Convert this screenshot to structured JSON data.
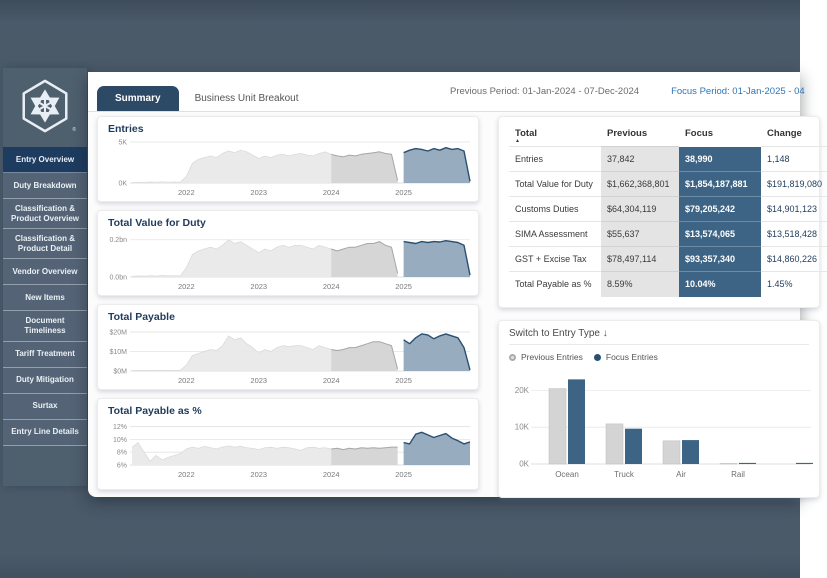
{
  "colors": {
    "background": "#4A5A69",
    "sidebar_panel": "#4E5F6E",
    "sidebar_item": "#546476",
    "sidebar_active": "#1E3C5F",
    "tab_navy": "#2C4A66",
    "steel_blue": "#3D6485",
    "steel_fill": "#91A8BC",
    "navy_stroke": "#2A5071",
    "prev_fill": "#D4D4D4",
    "prev_stroke": "#A6A6A6",
    "base_fill": "#E9E9E9",
    "focus_text_blue": "#2E75B6",
    "navy_text": "#1F3B5C",
    "prev_cell_bg": "#E4E4E4"
  },
  "tabs": [
    "Summary",
    "Business Unit Breakout"
  ],
  "header": {
    "previous_period": "Previous Period: 01-Jan-2024 - 07-Dec-2024",
    "focus_period": "Focus Period: 01-Jan-2025 - 04"
  },
  "sidebar": {
    "items": [
      {
        "label": "Entry Overview",
        "active": true
      },
      {
        "label": "Duty Breakdown"
      },
      {
        "label": "Classification & Product Overview"
      },
      {
        "label": "Classification & Product Detail"
      },
      {
        "label": "Vendor Overview"
      },
      {
        "label": "New Items"
      },
      {
        "label": "Document Timeliness"
      },
      {
        "label": "Tariff Treatment"
      },
      {
        "label": "Duty Mitigation"
      },
      {
        "label": "Surtax"
      },
      {
        "label": "Entry Line Details"
      }
    ]
  },
  "table": {
    "headers": [
      "Total",
      "Previous",
      "Focus",
      "Change"
    ],
    "sort_icon": "▲",
    "rows": [
      {
        "label": "Entries",
        "previous": "37,842",
        "focus": "38,990",
        "change": "1,148"
      },
      {
        "label": "Total Value for Duty",
        "previous": "$1,662,368,801",
        "focus": "$1,854,187,881",
        "change": "$191,819,080"
      },
      {
        "label": "Customs Duties",
        "previous": "$64,304,119",
        "focus": "$79,205,242",
        "change": "$14,901,123"
      },
      {
        "label": "SIMA Assessment",
        "previous": "$55,637",
        "focus": "$13,574,065",
        "change": "$13,518,428"
      },
      {
        "label": "GST + Excise Tax",
        "previous": "$78,497,114",
        "focus": "$93,357,340",
        "change": "$14,860,226"
      },
      {
        "label": "Total Payable as %",
        "previous": "8.59%",
        "focus": "10.04%",
        "change": "1.45%"
      }
    ]
  },
  "chart_data": [
    {
      "type": "area",
      "title": "Entries",
      "ymin": 0,
      "ymax": 5,
      "yticks": [
        {
          "v": 0,
          "label": "0K"
        },
        {
          "v": 5,
          "label": "5K"
        }
      ],
      "xticks": [
        "2022",
        "2023",
        "2024",
        "2025"
      ],
      "prev_start": 33,
      "focus_start": 45,
      "values": [
        0.05,
        0.1,
        0.08,
        0.12,
        0.1,
        0.15,
        0.1,
        0.12,
        0.1,
        0.8,
        2.4,
        2.9,
        3.1,
        3.3,
        3.1,
        3.6,
        3.9,
        3.7,
        4.0,
        3.8,
        3.4,
        3.0,
        3.3,
        3.1,
        3.4,
        3.5,
        3.3,
        3.5,
        3.6,
        3.4,
        3.3,
        3.6,
        3.8,
        3.5,
        3.3,
        3.2,
        3.4,
        3.3,
        3.5,
        3.6,
        3.7,
        3.8,
        3.6,
        3.5,
        0.3,
        3.7,
        4.0,
        4.2,
        4.1,
        3.9,
        4.2,
        4.0,
        4.3,
        4.1,
        4.2,
        3.9,
        0.2
      ]
    },
    {
      "type": "area",
      "title": "Total Value for Duty",
      "ymin": 0,
      "ymax": 0.22,
      "yticks": [
        {
          "v": 0,
          "label": "0.0bn"
        },
        {
          "v": 0.2,
          "label": "0.2bn"
        }
      ],
      "xticks": [
        "2022",
        "2023",
        "2024",
        "2025"
      ],
      "prev_start": 33,
      "focus_start": 45,
      "values": [
        0.004,
        0.006,
        0.005,
        0.007,
        0.005,
        0.008,
        0.006,
        0.007,
        0.006,
        0.05,
        0.12,
        0.14,
        0.15,
        0.16,
        0.15,
        0.17,
        0.2,
        0.18,
        0.19,
        0.17,
        0.15,
        0.13,
        0.15,
        0.14,
        0.16,
        0.17,
        0.16,
        0.17,
        0.17,
        0.16,
        0.15,
        0.17,
        0.16,
        0.15,
        0.14,
        0.15,
        0.16,
        0.16,
        0.17,
        0.18,
        0.18,
        0.19,
        0.17,
        0.16,
        0.02,
        0.19,
        0.185,
        0.18,
        0.19,
        0.185,
        0.19,
        0.188,
        0.195,
        0.19,
        0.185,
        0.17,
        0.01
      ]
    },
    {
      "type": "area",
      "title": "Total Payable",
      "ymin": 0,
      "ymax": 21,
      "yticks": [
        {
          "v": 0,
          "label": "$0M"
        },
        {
          "v": 10,
          "label": "$10M"
        },
        {
          "v": 20,
          "label": "$20M"
        }
      ],
      "xticks": [
        "2022",
        "2023",
        "2024",
        "2025"
      ],
      "prev_start": 33,
      "focus_start": 45,
      "values": [
        0.2,
        0.3,
        0.25,
        0.35,
        0.3,
        0.4,
        0.3,
        0.35,
        0.3,
        3,
        8,
        9,
        10,
        11,
        10.5,
        13,
        18,
        16,
        17,
        14,
        12,
        9,
        11,
        10,
        12,
        13,
        12.5,
        13,
        13,
        12,
        11,
        13,
        12,
        11,
        10.5,
        11,
        12,
        12,
        13,
        14,
        15,
        15,
        14,
        13,
        1,
        16,
        14,
        17,
        19,
        18.5,
        16.5,
        18,
        19,
        18,
        17,
        12,
        0.5
      ]
    },
    {
      "type": "area",
      "title": "Total Payable as %",
      "ymin": 6,
      "ymax": 12.4,
      "yticks": [
        {
          "v": 6,
          "label": "6%"
        },
        {
          "v": 8,
          "label": "8%"
        },
        {
          "v": 10,
          "label": "10%"
        },
        {
          "v": 12,
          "label": "12%"
        }
      ],
      "xticks": [
        "2022",
        "2023",
        "2024",
        "2025"
      ],
      "prev_start": 33,
      "focus_start": 45,
      "values": [
        8.8,
        9.5,
        8.0,
        6.6,
        7.5,
        6.8,
        7.2,
        7.5,
        7.8,
        8.5,
        8.8,
        8.6,
        8.9,
        8.7,
        8.5,
        8.8,
        9.0,
        8.8,
        8.9,
        8.7,
        8.6,
        8.4,
        8.7,
        8.8,
        8.6,
        8.8,
        8.7,
        8.5,
        8.3,
        8.7,
        8.8,
        8.6,
        8.7,
        8.5,
        8.6,
        8.4,
        8.6,
        8.5,
        8.7,
        8.6,
        8.7,
        8.6,
        8.7,
        8.8,
        8.8,
        9.5,
        9.3,
        10.8,
        11.1,
        10.7,
        10.3,
        10.6,
        10.9,
        10.2,
        9.8,
        9.3,
        9.6
      ]
    },
    {
      "type": "bar",
      "title": "Switch to Entry Type ↓",
      "ymax": 25,
      "yticks": [
        {
          "v": 0,
          "label": "0K"
        },
        {
          "v": 10,
          "label": "10K"
        },
        {
          "v": 20,
          "label": "20K"
        }
      ],
      "categories": [
        "Ocean",
        "Truck",
        "Air",
        "Rail",
        ""
      ],
      "series": [
        {
          "name": "Previous Entries",
          "values": [
            20.5,
            10.9,
            6.3,
            0.15,
            0
          ]
        },
        {
          "name": "Focus Entries",
          "values": [
            23,
            9.6,
            6.5,
            0.3,
            0.3
          ]
        }
      ]
    }
  ]
}
